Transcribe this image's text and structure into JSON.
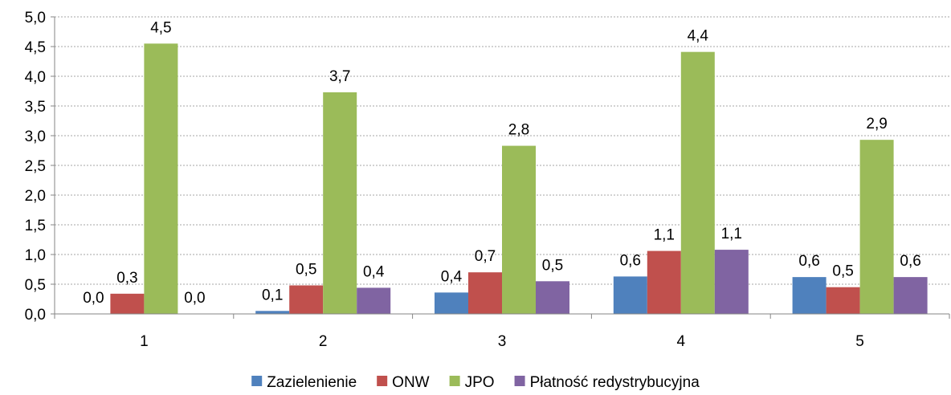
{
  "chart_data": {
    "type": "bar",
    "title": "",
    "xlabel": "",
    "ylabel": "",
    "ylim": [
      0,
      5
    ],
    "ytick_step": 0.5,
    "ytick_labels": [
      "0,0",
      "0,5",
      "1,0",
      "1,5",
      "2,0",
      "2,5",
      "3,0",
      "3,5",
      "4,0",
      "4,5",
      "5,0"
    ],
    "grid": true,
    "legend_position": "bottom",
    "categories": [
      "1",
      "2",
      "3",
      "4",
      "5"
    ],
    "series": [
      {
        "name": "Zazielenienie",
        "color": "#4F81BD",
        "values": [
          0.0,
          0.05,
          0.36,
          0.63,
          0.62
        ],
        "labels": [
          "0,0",
          "0,1",
          "0,4",
          "0,6",
          "0,6"
        ]
      },
      {
        "name": "ONW",
        "color": "#C0504D",
        "values": [
          0.34,
          0.48,
          0.7,
          1.06,
          0.45
        ],
        "labels": [
          "0,3",
          "0,5",
          "0,7",
          "1,1",
          "0,5"
        ]
      },
      {
        "name": "JPO",
        "color": "#9BBB59",
        "values": [
          4.55,
          3.73,
          2.83,
          4.41,
          2.93
        ],
        "labels": [
          "4,5",
          "3,7",
          "2,8",
          "4,4",
          "2,9"
        ]
      },
      {
        "name": "Płatność redystrybucyjna",
        "color": "#8064A2",
        "values": [
          0.0,
          0.44,
          0.55,
          1.08,
          0.62
        ],
        "labels": [
          "0,0",
          "0,4",
          "0,5",
          "1,1",
          "0,6"
        ]
      }
    ]
  }
}
